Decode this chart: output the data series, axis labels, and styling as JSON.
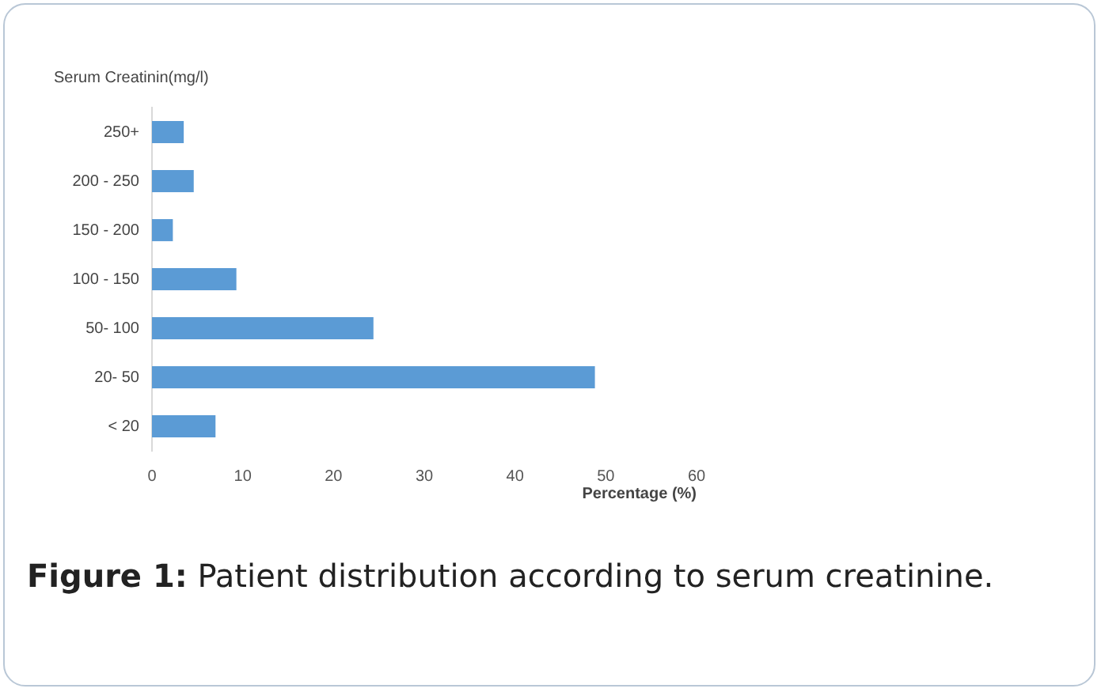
{
  "chart_data": {
    "type": "bar",
    "orientation": "horizontal",
    "ylabel": "Serum Creatinin(mg/l)",
    "xlabel": "Percentage (%)",
    "categories": [
      "250+",
      "200 - 250",
      "150 - 200",
      "100 - 150",
      "50- 100",
      "20- 50",
      "< 20"
    ],
    "values": [
      3.5,
      4.6,
      2.3,
      9.3,
      24.4,
      48.8,
      7.0
    ],
    "color": "#5b9bd5",
    "xlim": [
      0,
      60
    ],
    "xticks": [
      0,
      10,
      20,
      30,
      40,
      50,
      60
    ],
    "grid": false,
    "legend": false,
    "annotations": [
      "Figure 1: Patient distribution according to serum creatinine."
    ]
  }
}
